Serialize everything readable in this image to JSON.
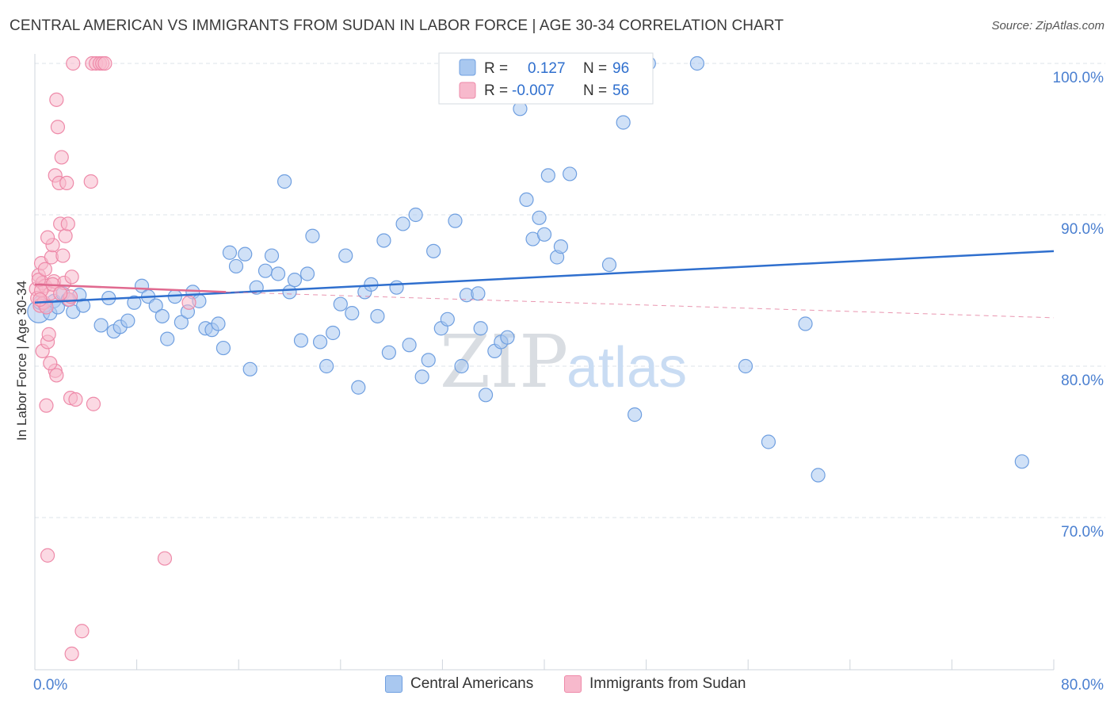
{
  "title": "CENTRAL AMERICAN VS IMMIGRANTS FROM SUDAN IN LABOR FORCE | AGE 30-34 CORRELATION CHART",
  "source": "Source: ZipAtlas.com",
  "watermark": {
    "zip": "ZIP",
    "atlas": "atlas"
  },
  "colors": {
    "blue_fill": "#a9c8f0",
    "blue_stroke": "#6f9fe0",
    "blue_line": "#2f6fce",
    "pink_fill": "#f7b9cc",
    "pink_stroke": "#ee8aa9",
    "pink_line": "#e0698f",
    "axis_label_blue": "#4a7fd0",
    "grid": "#dde3ea"
  },
  "legend_top": {
    "rows": [
      {
        "r_label": "R =",
        "r_value": "0.127",
        "n_label": "N =",
        "n_value": "96",
        "color": "blue"
      },
      {
        "r_label": "R =",
        "r_value": "-0.007",
        "n_label": "N =",
        "n_value": "56",
        "color": "pink"
      }
    ]
  },
  "legend_bottom": [
    {
      "label": "Central Americans",
      "color": "blue"
    },
    {
      "label": "Immigrants from Sudan",
      "color": "pink"
    }
  ],
  "chart_data": {
    "type": "scatter",
    "title": "CENTRAL AMERICAN VS IMMIGRANTS FROM SUDAN IN LABOR FORCE | AGE 30-34 CORRELATION CHART",
    "xlabel": "",
    "ylabel": "In Labor Force | Age 30-34",
    "xlim": [
      0,
      80
    ],
    "ylim": [
      60,
      101
    ],
    "x_tick_labels": [
      "0.0%",
      "80.0%"
    ],
    "y_ticks": [
      70,
      80,
      90,
      100
    ],
    "y_tick_labels": [
      "70.0%",
      "80.0%",
      "90.0%",
      "100.0%"
    ],
    "series": [
      {
        "name": "Central Americans",
        "color": "blue",
        "R": 0.127,
        "N": 96,
        "trend": {
          "x": [
            0,
            80
          ],
          "y": [
            84.2,
            87.6
          ],
          "dashed": false
        },
        "points": [
          [
            0.3,
            83.6
          ],
          [
            0.8,
            84.0
          ],
          [
            1.2,
            83.5
          ],
          [
            1.5,
            84.3
          ],
          [
            2.2,
            84.8
          ],
          [
            3.0,
            83.6
          ],
          [
            3.5,
            84.7
          ],
          [
            3.8,
            84.0
          ],
          [
            5.2,
            82.7
          ],
          [
            5.8,
            84.5
          ],
          [
            6.2,
            82.3
          ],
          [
            6.7,
            82.6
          ],
          [
            7.3,
            83.0
          ],
          [
            7.8,
            84.2
          ],
          [
            8.4,
            85.3
          ],
          [
            8.9,
            84.6
          ],
          [
            9.5,
            84.0
          ],
          [
            10.0,
            83.3
          ],
          [
            10.4,
            81.8
          ],
          [
            11.0,
            84.6
          ],
          [
            11.5,
            82.9
          ],
          [
            12.0,
            83.6
          ],
          [
            12.4,
            84.9
          ],
          [
            12.9,
            84.3
          ],
          [
            13.4,
            82.5
          ],
          [
            13.9,
            82.4
          ],
          [
            14.4,
            82.8
          ],
          [
            14.8,
            81.2
          ],
          [
            15.3,
            87.5
          ],
          [
            15.8,
            86.6
          ],
          [
            16.5,
            87.4
          ],
          [
            16.9,
            79.8
          ],
          [
            17.4,
            85.2
          ],
          [
            18.1,
            86.3
          ],
          [
            18.6,
            87.3
          ],
          [
            19.1,
            86.1
          ],
          [
            19.6,
            92.2
          ],
          [
            20.0,
            84.9
          ],
          [
            20.4,
            85.7
          ],
          [
            20.9,
            81.7
          ],
          [
            21.4,
            86.1
          ],
          [
            21.8,
            88.6
          ],
          [
            22.4,
            81.6
          ],
          [
            22.9,
            80.0
          ],
          [
            23.4,
            82.2
          ],
          [
            24.0,
            84.1
          ],
          [
            24.4,
            87.3
          ],
          [
            24.9,
            83.5
          ],
          [
            25.4,
            78.6
          ],
          [
            25.9,
            84.9
          ],
          [
            26.4,
            85.4
          ],
          [
            26.9,
            83.3
          ],
          [
            27.4,
            88.3
          ],
          [
            27.8,
            80.9
          ],
          [
            28.4,
            85.2
          ],
          [
            28.9,
            89.4
          ],
          [
            29.4,
            81.4
          ],
          [
            29.9,
            90.0
          ],
          [
            30.4,
            79.3
          ],
          [
            30.9,
            80.4
          ],
          [
            31.3,
            87.6
          ],
          [
            31.9,
            82.5
          ],
          [
            32.4,
            83.1
          ],
          [
            33.0,
            89.6
          ],
          [
            33.5,
            80.0
          ],
          [
            33.9,
            84.7
          ],
          [
            34.8,
            84.8
          ],
          [
            35.0,
            82.5
          ],
          [
            35.4,
            78.1
          ],
          [
            36.1,
            81.0
          ],
          [
            36.6,
            81.6
          ],
          [
            37.1,
            81.9
          ],
          [
            37.6,
            100.0
          ],
          [
            38.1,
            97.0
          ],
          [
            38.6,
            91.0
          ],
          [
            39.1,
            88.4
          ],
          [
            39.6,
            89.8
          ],
          [
            40.0,
            88.7
          ],
          [
            40.3,
            92.6
          ],
          [
            41.0,
            87.2
          ],
          [
            41.3,
            87.9
          ],
          [
            42.0,
            92.7
          ],
          [
            43.5,
            100.0
          ],
          [
            45.1,
            86.7
          ],
          [
            46.2,
            96.1
          ],
          [
            47.1,
            76.8
          ],
          [
            48.2,
            100.0
          ],
          [
            52.0,
            100.0
          ],
          [
            55.8,
            80.0
          ],
          [
            57.6,
            75.0
          ],
          [
            60.5,
            82.8
          ],
          [
            61.5,
            72.8
          ],
          [
            77.5,
            73.7
          ],
          [
            0.4,
            84.2
          ],
          [
            1.8,
            83.9
          ],
          [
            2.6,
            84.4
          ]
        ]
      },
      {
        "name": "Immigrants from Sudan",
        "color": "pink",
        "R": -0.007,
        "N": 56,
        "trend": {
          "x": [
            0,
            15
          ],
          "y": [
            85.4,
            84.9
          ],
          "dashed": false
        },
        "trend_ext": {
          "x": [
            15,
            80
          ],
          "y": [
            84.9,
            83.2
          ],
          "dashed": true
        },
        "points": [
          [
            0.1,
            85.1
          ],
          [
            0.2,
            84.5
          ],
          [
            0.3,
            86.0
          ],
          [
            0.4,
            84.0
          ],
          [
            0.5,
            86.8
          ],
          [
            0.6,
            85.5
          ],
          [
            0.7,
            84.2
          ],
          [
            0.8,
            85.3
          ],
          [
            0.9,
            83.9
          ],
          [
            0.6,
            81.0
          ],
          [
            0.9,
            77.4
          ],
          [
            1.0,
            81.6
          ],
          [
            1.1,
            82.1
          ],
          [
            1.2,
            84.8
          ],
          [
            1.3,
            87.2
          ],
          [
            1.4,
            88.0
          ],
          [
            1.5,
            85.6
          ],
          [
            1.6,
            79.7
          ],
          [
            1.7,
            79.4
          ],
          [
            1.6,
            92.6
          ],
          [
            1.7,
            97.6
          ],
          [
            1.8,
            95.8
          ],
          [
            1.9,
            92.1
          ],
          [
            2.0,
            89.4
          ],
          [
            2.1,
            93.8
          ],
          [
            2.2,
            87.3
          ],
          [
            2.3,
            85.5
          ],
          [
            2.4,
            88.6
          ],
          [
            2.5,
            92.1
          ],
          [
            2.6,
            89.4
          ],
          [
            2.7,
            84.4
          ],
          [
            2.8,
            84.6
          ],
          [
            2.9,
            85.9
          ],
          [
            1.0,
            88.5
          ],
          [
            1.2,
            80.2
          ],
          [
            2.8,
            77.9
          ],
          [
            3.2,
            77.8
          ],
          [
            4.6,
            77.5
          ],
          [
            4.4,
            92.2
          ],
          [
            4.5,
            100.0
          ],
          [
            4.8,
            100.0
          ],
          [
            5.1,
            100.0
          ],
          [
            5.3,
            100.0
          ],
          [
            5.5,
            100.0
          ],
          [
            3.0,
            100.0
          ],
          [
            1.0,
            67.5
          ],
          [
            3.7,
            62.5
          ],
          [
            2.9,
            61.0
          ],
          [
            10.2,
            67.3
          ],
          [
            12.1,
            84.2
          ],
          [
            0.3,
            85.7
          ],
          [
            0.5,
            85.0
          ],
          [
            1.4,
            85.4
          ],
          [
            0.8,
            86.4
          ],
          [
            2.0,
            84.8
          ],
          [
            0.4,
            84.4
          ]
        ]
      }
    ]
  }
}
